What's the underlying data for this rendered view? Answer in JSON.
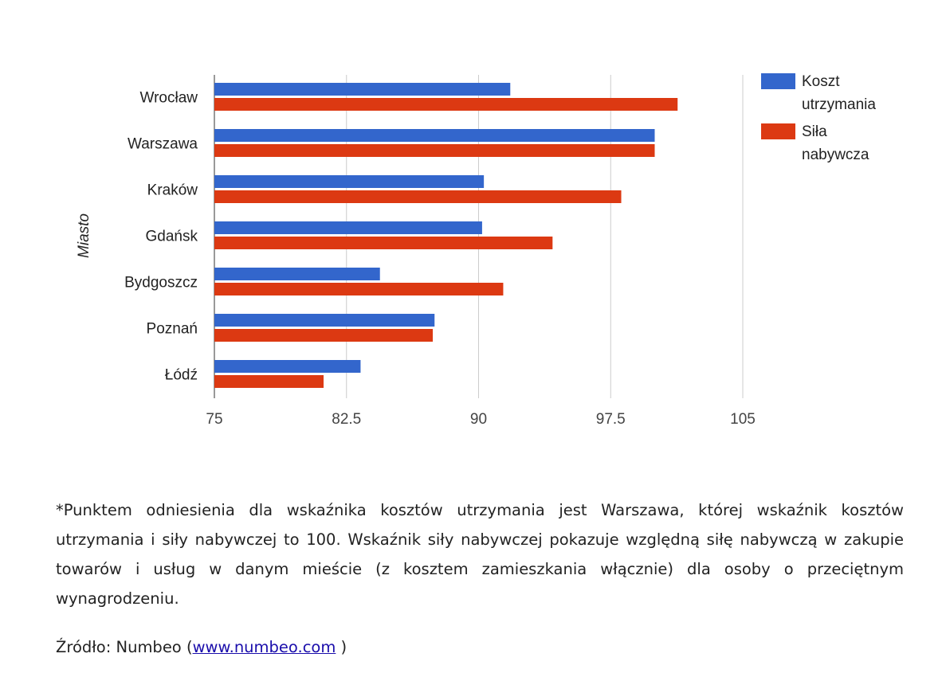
{
  "chart_data": {
    "type": "bar",
    "orientation": "horizontal",
    "ylabel": "Miasto",
    "categories": [
      "Wrocław",
      "Warszawa",
      "Kraków",
      "Gdańsk",
      "Bydgoszcz",
      "Poznań",
      "Łódź"
    ],
    "series": [
      {
        "name": "Koszt utrzymania",
        "name_lines": [
          "Koszt",
          "utrzymania"
        ],
        "color": "#3366cc",
        "values": [
          91.8,
          100.0,
          90.3,
          90.2,
          84.4,
          87.5,
          83.3
        ]
      },
      {
        "name": "Siła nabywcza",
        "name_lines": [
          "Siła",
          "nabywcza"
        ],
        "color": "#dc3912",
        "values": [
          101.3,
          100.0,
          98.1,
          94.2,
          91.4,
          87.4,
          81.2
        ]
      }
    ],
    "xlim": [
      75,
      105
    ],
    "xticks": [
      75,
      82.5,
      90,
      97.5,
      105
    ],
    "xtick_labels": [
      "75",
      "82.5",
      "90",
      "97.5",
      "105"
    ],
    "grid": true,
    "legend_position": "right"
  },
  "footnote": "*Punktem odniesienia dla wskaźnika kosztów utrzymania jest Warszawa, której wskaźnik kosztów utrzymania i siły nabywczej to 100. Wskaźnik siły nabywczej pokazuje względną siłę nabywczą w zakupie towarów i usług w danym mieście (z kosztem zamieszkania włącznie) dla osoby o przeciętnym wynagrodzeniu.",
  "source": {
    "prefix": "Źródło: Numbeo (",
    "link_text": "www.numbeo.com",
    "suffix": " )"
  }
}
